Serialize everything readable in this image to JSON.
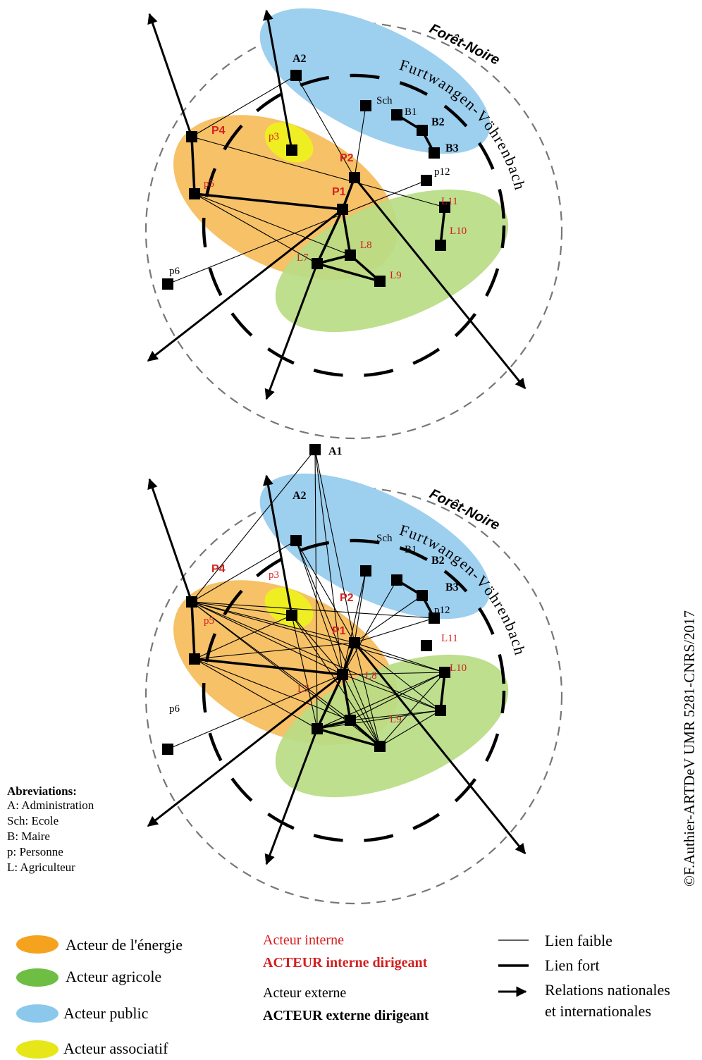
{
  "region_labels": {
    "outer": "Forêt-Noire",
    "inner": "Furtwangen-Vöhrenbach"
  },
  "node_labels": {
    "A1": "A1",
    "A2": "A2",
    "Sch": "Sch",
    "B1": "B1",
    "B2": "B2",
    "B3": "B3",
    "P1": "P1",
    "P2": "P2",
    "P4": "P4",
    "p3": "p3",
    "p5": "p5",
    "p6": "p6",
    "p12": "p12",
    "L7": "L7",
    "L8": "L8",
    "L9": "L9",
    "L10": "L10",
    "L11": "L11"
  },
  "abbreviations": {
    "title": "Abreviations:",
    "items": [
      "A: Administration",
      "Sch: Ecole",
      "B: Maire",
      "p: Personne",
      "L: Agriculteur"
    ]
  },
  "legend": {
    "actors": [
      {
        "label": "Acteur de l'énergie",
        "color": "#F5A21F"
      },
      {
        "label": "Acteur agricole",
        "color": "#6EBE44"
      },
      {
        "label": "Acteur public",
        "color": "#8CC8EC"
      },
      {
        "label": "Acteur associatif",
        "color": "#E6E619"
      }
    ],
    "internal": "Acteur interne",
    "internal_leader": "ACTEUR interne dirigeant",
    "external": "Acteur externe",
    "external_leader": "ACTEUR externe dirigeant",
    "weak_link": "Lien faible",
    "strong_link": "Lien fort",
    "relations_line1": "Relations nationales",
    "relations_line2": "et internationales"
  },
  "credit": "©F.Authier-ARTDeV UMR 5281-CNRS/2017",
  "colors": {
    "energy_fill": "#F5BE5F",
    "agri_fill": "#B8DC84",
    "public_fill": "#9DCFEF",
    "assoc_fill": "#EEEE22",
    "internal_text": "#D42020",
    "external_text": "#000000"
  }
}
